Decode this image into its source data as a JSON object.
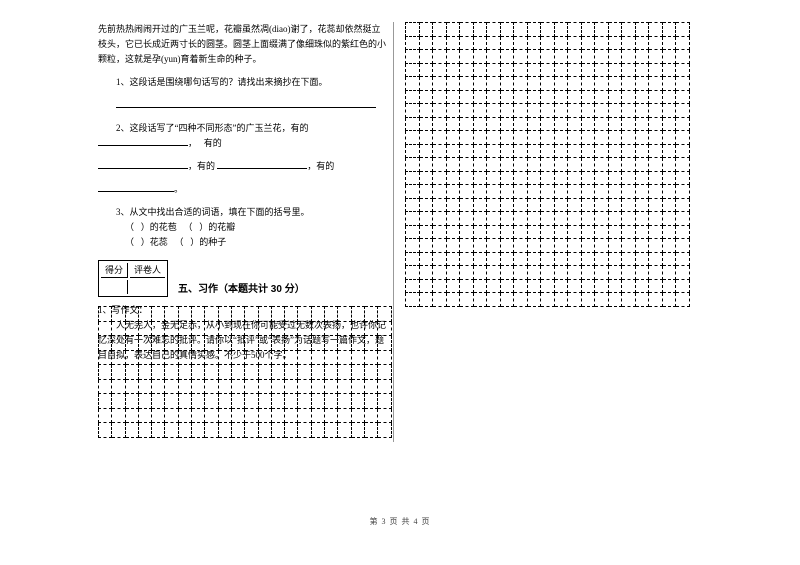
{
  "passage_open": "先前热热闹闹开过的广玉兰呢，花瓣虽然凋(diao)谢了，花蕊却依然挺立枝头，它已长成近两寸长的圆茎。圆茎上面缀满了像细珠似的紫红色的小颗粒，这就是孕(yun)育着新生命的种子。",
  "q1_label": "1、这段话是围绕哪句话写的？请找出来摘抄在下面。",
  "q2_label": "2、这段话写了“四种不同形态”的广玉兰花，有的",
  "q2_sep": "，",
  "q2_has": "有的",
  "q2_end": "。",
  "q3_label": "3、从文中找出合适的词语，填在下面的括号里。",
  "q3_l1a": "（",
  "q3_l1b": "）的花苞",
  "q3_l1c": "（",
  "q3_l1d": "）的花瓣",
  "q3_l2a": "（",
  "q3_l2b": "）花蕊",
  "q3_l2c": "（",
  "q3_l2d": "）的种子",
  "score_col1": "得分",
  "score_col2": "评卷人",
  "section5": "五、习作（本题共计 30 分）",
  "w_label": "1、写作文：",
  "w_body": "　　人无完人，金无足赤，从小到现在你可能受过无数次表扬，也许你记忆深处有一次难忘的批评。请你以“批评”或“表扬”为话题写一篇作文，题目自拟，表达自己的真情实感。不少于500个字。",
  "footer": "第 3 页 共 4 页",
  "grid_right_rows": 21,
  "grid_right_cols": 21,
  "grid_bottom_rows": 9,
  "grid_bottom_cols": 22
}
